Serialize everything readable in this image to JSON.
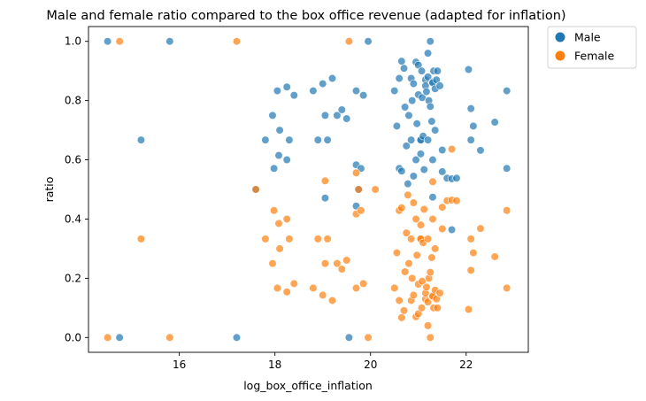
{
  "chart_data": {
    "type": "scatter",
    "title": "Male and female ratio compared to the box office revenue (adapted for inflation)",
    "xlabel": "log_box_office_inflation",
    "ylabel": "ratio",
    "xlim": [
      14.1,
      23.3
    ],
    "ylim": [
      -0.05,
      1.05
    ],
    "xticks": [
      "16",
      "18",
      "20",
      "22"
    ],
    "yticks": [
      "0.0",
      "0.2",
      "0.4",
      "0.6",
      "0.8",
      "1.0"
    ],
    "grid": false,
    "legend_position": "outside-top-right",
    "series": [
      {
        "name": "Male",
        "color": "#1f77b4",
        "points": [
          [
            14.5,
            1.0
          ],
          [
            14.75,
            0.0
          ],
          [
            15.2,
            0.667
          ],
          [
            15.8,
            1.0
          ],
          [
            17.2,
            0.0
          ],
          [
            17.6,
            0.5
          ],
          [
            17.8,
            0.667
          ],
          [
            17.95,
            0.75
          ],
          [
            17.98,
            0.571
          ],
          [
            18.05,
            0.833
          ],
          [
            18.08,
            0.615
          ],
          [
            18.1,
            0.7
          ],
          [
            18.25,
            0.846
          ],
          [
            18.25,
            0.6
          ],
          [
            18.3,
            0.667
          ],
          [
            18.4,
            0.818
          ],
          [
            18.8,
            0.833
          ],
          [
            18.9,
            0.667
          ],
          [
            19.0,
            0.857
          ],
          [
            19.05,
            0.75
          ],
          [
            19.05,
            0.471
          ],
          [
            19.1,
            0.667
          ],
          [
            19.2,
            0.875
          ],
          [
            19.3,
            0.75
          ],
          [
            19.4,
            0.769
          ],
          [
            19.5,
            0.739
          ],
          [
            19.55,
            0.0
          ],
          [
            19.7,
            0.444
          ],
          [
            19.7,
            0.583
          ],
          [
            19.7,
            0.833
          ],
          [
            19.75,
            0.5
          ],
          [
            19.8,
            0.571
          ],
          [
            19.85,
            0.818
          ],
          [
            19.95,
            1.0
          ],
          [
            20.5,
            0.833
          ],
          [
            20.55,
            0.714
          ],
          [
            20.6,
            0.875
          ],
          [
            20.6,
            0.571
          ],
          [
            20.65,
            0.933
          ],
          [
            20.65,
            0.562
          ],
          [
            20.7,
            0.909
          ],
          [
            20.72,
            0.778
          ],
          [
            20.75,
            0.647
          ],
          [
            20.78,
            0.519
          ],
          [
            20.8,
            0.75
          ],
          [
            20.85,
            0.875
          ],
          [
            20.85,
            0.667
          ],
          [
            20.87,
            0.8
          ],
          [
            20.9,
            0.857
          ],
          [
            20.9,
            0.545
          ],
          [
            20.95,
            0.93
          ],
          [
            20.95,
            0.6
          ],
          [
            20.97,
            0.722
          ],
          [
            21.0,
            0.92
          ],
          [
            21.0,
            0.82
          ],
          [
            21.05,
            0.667
          ],
          [
            21.05,
            0.667
          ],
          [
            21.05,
            0.62
          ],
          [
            21.07,
            0.9
          ],
          [
            21.08,
            0.81
          ],
          [
            21.1,
            0.68
          ],
          [
            21.12,
            0.567
          ],
          [
            21.15,
            0.87
          ],
          [
            21.15,
            0.85
          ],
          [
            21.17,
            0.83
          ],
          [
            21.2,
            0.96
          ],
          [
            21.2,
            0.88
          ],
          [
            21.2,
            0.667
          ],
          [
            21.22,
            0.8
          ],
          [
            21.25,
            0.78
          ],
          [
            21.25,
            1.0
          ],
          [
            21.28,
            0.73
          ],
          [
            21.3,
            0.863
          ],
          [
            21.3,
            0.6
          ],
          [
            21.3,
            0.86
          ],
          [
            21.32,
            0.9
          ],
          [
            21.35,
            0.84
          ],
          [
            21.35,
            0.7
          ],
          [
            21.38,
            0.87
          ],
          [
            21.4,
            0.9
          ],
          [
            21.45,
            0.85
          ],
          [
            21.3,
            0.474
          ],
          [
            21.5,
            0.633
          ],
          [
            21.5,
            0.56
          ],
          [
            21.6,
            0.538
          ],
          [
            21.7,
            0.536
          ],
          [
            21.7,
            0.364
          ],
          [
            21.8,
            0.538
          ],
          [
            22.05,
            0.905
          ],
          [
            22.1,
            0.773
          ],
          [
            22.1,
            0.667
          ],
          [
            22.15,
            0.714
          ],
          [
            22.3,
            0.632
          ],
          [
            22.6,
            0.727
          ],
          [
            22.85,
            0.833
          ],
          [
            22.85,
            0.571
          ]
        ]
      },
      {
        "name": "Female",
        "color": "#ff7f0e",
        "points": [
          [
            14.5,
            0.0
          ],
          [
            14.75,
            1.0
          ],
          [
            15.2,
            0.333
          ],
          [
            15.8,
            0.0
          ],
          [
            17.2,
            1.0
          ],
          [
            17.6,
            0.5
          ],
          [
            17.8,
            0.333
          ],
          [
            17.95,
            0.25
          ],
          [
            17.98,
            0.429
          ],
          [
            18.05,
            0.167
          ],
          [
            18.08,
            0.385
          ],
          [
            18.1,
            0.3
          ],
          [
            18.25,
            0.154
          ],
          [
            18.25,
            0.4
          ],
          [
            18.3,
            0.333
          ],
          [
            18.4,
            0.182
          ],
          [
            18.8,
            0.167
          ],
          [
            18.9,
            0.333
          ],
          [
            19.0,
            0.143
          ],
          [
            19.05,
            0.25
          ],
          [
            19.05,
            0.529
          ],
          [
            19.1,
            0.333
          ],
          [
            19.2,
            0.125
          ],
          [
            19.3,
            0.25
          ],
          [
            19.4,
            0.231
          ],
          [
            19.5,
            0.261
          ],
          [
            19.55,
            1.0
          ],
          [
            19.7,
            0.556
          ],
          [
            19.7,
            0.417
          ],
          [
            19.7,
            0.167
          ],
          [
            19.75,
            0.5
          ],
          [
            19.8,
            0.429
          ],
          [
            19.85,
            0.182
          ],
          [
            19.95,
            0.0
          ],
          [
            20.1,
            0.5
          ],
          [
            20.5,
            0.167
          ],
          [
            20.55,
            0.286
          ],
          [
            20.6,
            0.125
          ],
          [
            20.6,
            0.429
          ],
          [
            20.65,
            0.067
          ],
          [
            20.65,
            0.438
          ],
          [
            20.7,
            0.091
          ],
          [
            20.72,
            0.222
          ],
          [
            20.75,
            0.353
          ],
          [
            20.78,
            0.481
          ],
          [
            20.8,
            0.25
          ],
          [
            20.85,
            0.125
          ],
          [
            20.85,
            0.333
          ],
          [
            20.87,
            0.2
          ],
          [
            20.9,
            0.143
          ],
          [
            20.9,
            0.455
          ],
          [
            20.95,
            0.07
          ],
          [
            20.95,
            0.4
          ],
          [
            20.97,
            0.278
          ],
          [
            21.0,
            0.08
          ],
          [
            21.0,
            0.18
          ],
          [
            21.05,
            0.333
          ],
          [
            21.05,
            0.333
          ],
          [
            21.05,
            0.38
          ],
          [
            21.07,
            0.1
          ],
          [
            21.08,
            0.19
          ],
          [
            21.1,
            0.32
          ],
          [
            21.12,
            0.433
          ],
          [
            21.15,
            0.13
          ],
          [
            21.15,
            0.15
          ],
          [
            21.17,
            0.17
          ],
          [
            21.2,
            0.04
          ],
          [
            21.2,
            0.12
          ],
          [
            21.2,
            0.333
          ],
          [
            21.22,
            0.2
          ],
          [
            21.25,
            0.22
          ],
          [
            21.25,
            0.0
          ],
          [
            21.28,
            0.27
          ],
          [
            21.3,
            0.137
          ],
          [
            21.3,
            0.4
          ],
          [
            21.3,
            0.14
          ],
          [
            21.32,
            0.1
          ],
          [
            21.35,
            0.16
          ],
          [
            21.35,
            0.3
          ],
          [
            21.38,
            0.13
          ],
          [
            21.4,
            0.1
          ],
          [
            21.45,
            0.15
          ],
          [
            21.3,
            0.526
          ],
          [
            21.5,
            0.367
          ],
          [
            21.5,
            0.44
          ],
          [
            21.6,
            0.462
          ],
          [
            21.7,
            0.464
          ],
          [
            21.7,
            0.636
          ],
          [
            21.8,
            0.462
          ],
          [
            22.05,
            0.095
          ],
          [
            22.1,
            0.227
          ],
          [
            22.1,
            0.333
          ],
          [
            22.15,
            0.286
          ],
          [
            22.3,
            0.368
          ],
          [
            22.6,
            0.273
          ],
          [
            22.85,
            0.167
          ],
          [
            22.85,
            0.429
          ]
        ]
      }
    ]
  }
}
